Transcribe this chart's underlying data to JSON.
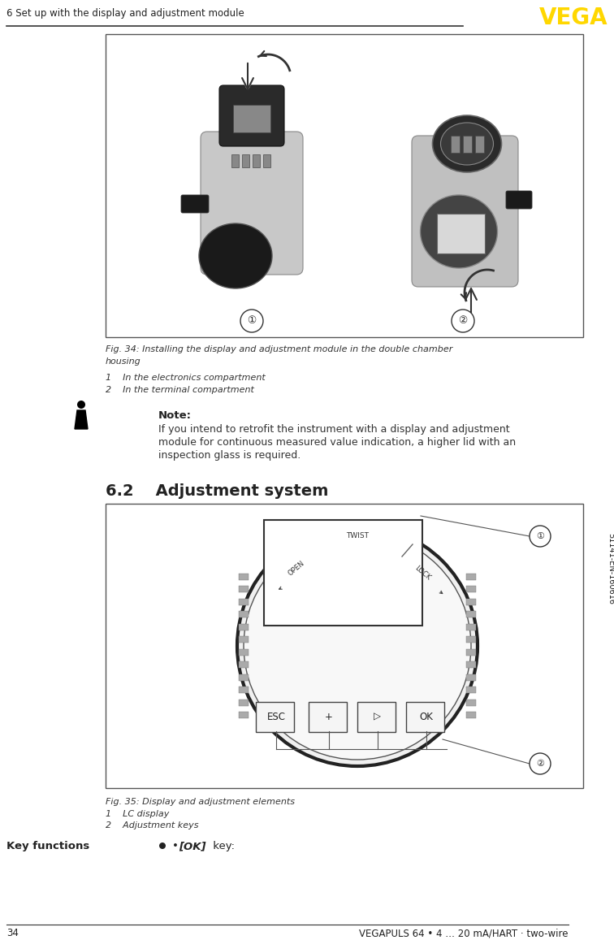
{
  "page_width": 7.56,
  "page_height": 11.57,
  "bg_color": "#ffffff",
  "header_text": "6 Set up with the display and adjustment module",
  "vega_logo_color": "#FFD700",
  "footer_page_num": "34",
  "footer_text": "VEGAPULS 64 • 4 … 20 mA/HART · two-wire",
  "sidebar_text": "51141-EN-160616",
  "fig34_caption_line1": "Fig. 34: Installing the display and adjustment module in the double chamber",
  "fig34_caption_line2": "housing",
  "fig34_item1": "1    In the electronics compartment",
  "fig34_item2": "2    In the terminal compartment",
  "note_title": "Note:",
  "note_body_line1": "If you intend to retrofit the instrument with a display and adjustment",
  "note_body_line2": "module for continuous measured value indication, a higher lid with an",
  "note_body_line3": "inspection glass is required.",
  "section_title": "6.2    Adjustment system",
  "fig35_caption": "Fig. 35: Display and adjustment elements",
  "fig35_item1": "1    LC display",
  "fig35_item2": "2    Adjustment keys",
  "key_functions_label": "Key functions",
  "key_functions_bullet": "•  [OK] key:",
  "key_functions_bold": "[OK]"
}
